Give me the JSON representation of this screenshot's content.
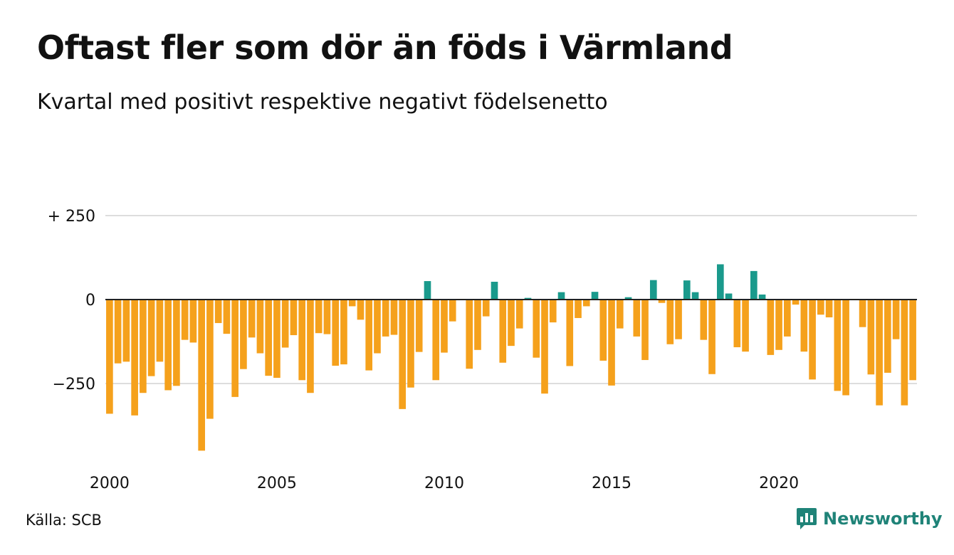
{
  "header": {
    "title": "Oftast fler som dör än föds i Värmland",
    "subtitle": "Kvartal med positivt respektive negativt födelsenetto"
  },
  "footer": {
    "source": "Källa: SCB",
    "brand": "Newsworthy",
    "brand_icon": "newsworthy-logo-icon"
  },
  "colors": {
    "positive": "#1a9a8c",
    "negative": "#f5a11c",
    "grid": "#dddddd",
    "baseline": "#222222",
    "brand": "#1f8378"
  },
  "chart_data": {
    "type": "bar",
    "title": "Oftast fler som dör än föds i Värmland",
    "subtitle": "Kvartal med positivt respektive negativt födelsenetto",
    "xlabel": "",
    "ylabel": "",
    "ylim": [
      -450,
      250
    ],
    "yticks": [
      {
        "value": 250,
        "label": "+ 250"
      },
      {
        "value": 0,
        "label": "0"
      },
      {
        "value": -250,
        "label": "−250"
      }
    ],
    "xticks": [
      {
        "year": 2000,
        "label": "2000"
      },
      {
        "year": 2005,
        "label": "2005"
      },
      {
        "year": 2010,
        "label": "2010"
      },
      {
        "year": 2015,
        "label": "2015"
      },
      {
        "year": 2020,
        "label": "2020"
      }
    ],
    "start": "2000 Q1",
    "frequency": "quarter",
    "grid": true,
    "series": [
      {
        "values": [
          -340,
          -190,
          -185,
          -345,
          -278,
          -228,
          -185,
          -270,
          -257,
          -120,
          -128,
          -450,
          -355,
          -70,
          -102,
          -290,
          -207,
          -113,
          -160,
          -227,
          -233,
          -143,
          -106,
          -240,
          -278,
          -100,
          -103,
          -197,
          -193,
          -20,
          -60,
          -211,
          -160,
          -110,
          -105,
          -326,
          -262,
          -156,
          55,
          -240,
          -158,
          -65,
          0,
          -206,
          -150,
          -50,
          53,
          -188,
          -138,
          -86,
          5,
          -173,
          -280,
          -68,
          22,
          -198,
          -55,
          -20,
          23,
          -182,
          -256,
          -86,
          7,
          -110,
          -180,
          58,
          -10,
          -133,
          -118,
          57,
          22,
          -120,
          -222,
          105,
          18,
          -142,
          -155,
          85,
          15,
          -165,
          -150,
          -110,
          -15,
          -155,
          -238,
          -45,
          -53,
          -272,
          -285,
          0,
          -82,
          -223,
          -315,
          -218,
          -118,
          -315,
          -240
        ]
      }
    ]
  }
}
